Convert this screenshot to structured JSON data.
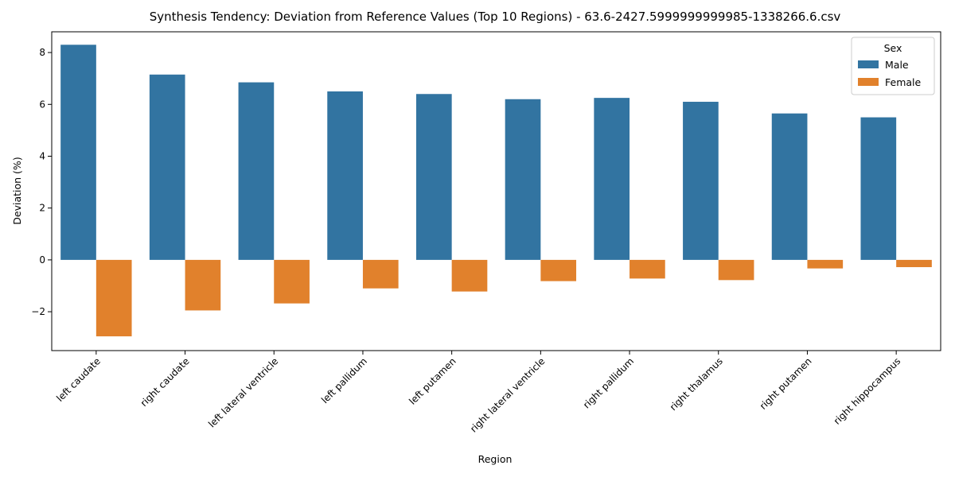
{
  "chart_data": {
    "type": "bar",
    "title": "Synthesis Tendency: Deviation from Reference Values (Top 10 Regions) - 63.6-2427.5999999999985-1338266.6.csv",
    "xlabel": "Region",
    "ylabel": "Deviation (%)",
    "ylim": [
      -3.5,
      8.8
    ],
    "yticks": [
      -2,
      0,
      2,
      4,
      6,
      8
    ],
    "ytick_labels": [
      "−2",
      "0",
      "2",
      "4",
      "6",
      "8"
    ],
    "categories": [
      "left caudate",
      "right caudate",
      "left lateral ventricle",
      "left pallidum",
      "left putamen",
      "right lateral ventricle",
      "right pallidum",
      "right thalamus",
      "right putamen",
      "right hippocampus"
    ],
    "legend": {
      "title": "Sex",
      "placement": "top-right"
    },
    "series": [
      {
        "name": "Male",
        "color": "#3274a1",
        "values": [
          8.3,
          7.15,
          6.85,
          6.5,
          6.4,
          6.2,
          6.25,
          6.1,
          5.65,
          5.5
        ]
      },
      {
        "name": "Female",
        "color": "#e1812c",
        "values": [
          -2.95,
          -1.95,
          -1.68,
          -1.1,
          -1.22,
          -0.82,
          -0.72,
          -0.78,
          -0.33,
          -0.28
        ]
      }
    ],
    "grid": false
  }
}
